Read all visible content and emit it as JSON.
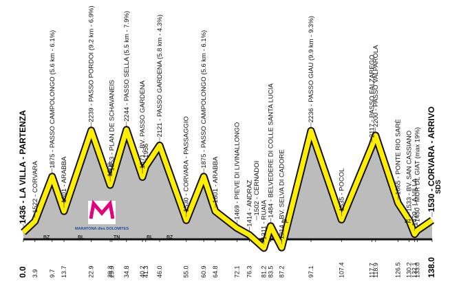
{
  "chart_data": {
    "type": "profile",
    "xlim": [
      0,
      138
    ],
    "ylim": [
      1000,
      2400
    ],
    "points": [
      {
        "km": 0.0,
        "value": 1436,
        "label": "1436 - LA VILLA - PARTENZA",
        "bold": true
      },
      {
        "km": 3.9,
        "value": 1522,
        "label": "1522 - CORVARA"
      },
      {
        "km": 9.7,
        "value": 1875,
        "label": "1875 - PASSO CAMPOLONGO (5.6 km - 6.1%)"
      },
      {
        "km": 13.7,
        "value": 1601,
        "label": "1601 - ARABBA"
      },
      {
        "km": 22.9,
        "value": 2239,
        "label": "2239 - PASSO PORDOI (9.2 km - 6.9%)"
      },
      {
        "km": 29.3,
        "value": 1808,
        "label": "1808"
      },
      {
        "km": 29.9,
        "value": 1853,
        "label": "1853 - PLAN DE SCHAVANEIS"
      },
      {
        "km": 34.8,
        "value": 2244,
        "label": "2244 - PASSO SELLA (5.5 km - 7.9%)"
      },
      {
        "km": 40.2,
        "value": 1871,
        "label": "1871 - BV. PASSO GARDENA"
      },
      {
        "km": 41.3,
        "value": 1956,
        "label": "1956"
      },
      {
        "km": 46.0,
        "value": 2121,
        "label": "2121 - PASSO GARDENA (5.8 km - 4.3%)"
      },
      {
        "km": 55.0,
        "value": 1530,
        "label": "1530 - CORVARA - PASSAGGIO"
      },
      {
        "km": 60.9,
        "value": 1875,
        "label": "1875 - PASSO CAMPOLONGO (5.6 km - 6.1%)"
      },
      {
        "km": 64.8,
        "value": 1601,
        "label": "1601 - ARABBA"
      },
      {
        "km": 72.1,
        "value": 1469,
        "label": "1469 - PIEVE DI LIVINALLONGO"
      },
      {
        "km": 76.3,
        "value": 1414,
        "label": "1414 - ANDRAZ"
      },
      {
        "km": null,
        "value": 1502,
        "label": "1502 - CERNADOI"
      },
      {
        "km": 81.2,
        "value": 1311,
        "label": "1311 - RUAIA"
      },
      {
        "km": 83.5,
        "value": 1484,
        "label": "1484 - BELVEDERE DI COLLE SANTA LUCIA"
      },
      {
        "km": 87.2,
        "value": 1314,
        "label": "1314 - BV. SELVA DI CADORE"
      },
      {
        "km": 97.1,
        "value": 2236,
        "label": "2236 - PASSO GIAU (9.9 km - 9.3%)"
      },
      {
        "km": 107.4,
        "value": 1535,
        "label": "1535 - POCOL"
      },
      {
        "km": 117.7,
        "value": 2117,
        "label": "2117 - PASSO FALZAREGO"
      },
      {
        "km": 118.9,
        "value": 2200,
        "label": "2200 - PASSO VALPAROLA"
      },
      {
        "km": 126.5,
        "value": 1665,
        "label": "1665 - PONTE RIO SARÈ"
      },
      {
        "km": 130.2,
        "value": 1533,
        "label": "1533 - BV. SAN CASSIANO"
      },
      {
        "km": 132.1,
        "value": 1420,
        "label": "1420 - LA VILLA"
      },
      {
        "km": 133.0,
        "value": 1450,
        "label": "1450 - MUR DL GIAT (max 19%)"
      },
      {
        "km": 138.0,
        "value": 1530,
        "label": "1530 - CORVARA - ARRIVO",
        "bold": true
      }
    ],
    "km_labels": [
      "0.0",
      "3.9",
      "9.7",
      "13.7",
      "22.9",
      "29.3",
      "29.9",
      "34.8",
      "40.2",
      "41.3",
      "46.0",
      "55.0",
      "60.9",
      "64.8",
      "72.1",
      "76.3",
      "81.2",
      "83.5",
      "87.2",
      "97.1",
      "107.4",
      "117.7",
      "118.9",
      "126.5",
      "130.2",
      "132.1",
      "133.0",
      "138.0"
    ],
    "provinces": [
      "BZ",
      "BL",
      "TN",
      "BL",
      "BZ",
      "BL",
      "BZ"
    ],
    "logo": "MARATONA dles DOLOMITES",
    "brand": "SDS",
    "color": "#ffee00"
  }
}
